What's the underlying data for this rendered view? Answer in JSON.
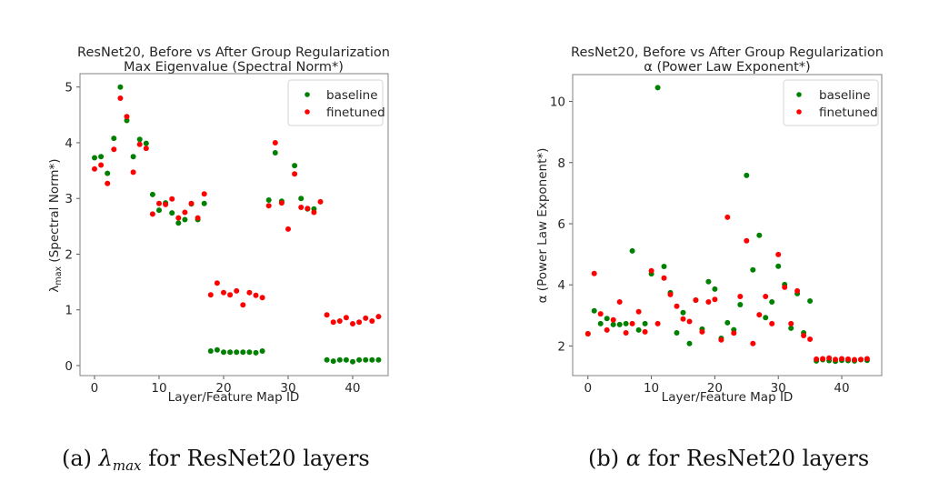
{
  "chart_data": [
    {
      "type": "scatter",
      "title": "ResNet20, Before vs After Group Regularization",
      "subtitle": "Max Eigenvalue (Spectral Norm*)",
      "xlabel": "Layer/Feature Map ID",
      "ylabel": "λmax (Spectral Norm*)",
      "ylabel_symbol": "λ",
      "ylabel_sub": "max",
      "ylabel_rest": " (Spectral Norm*)",
      "xlim": [
        -2.25,
        45.5
      ],
      "ylim": [
        -0.18,
        5.24
      ],
      "xticks": [
        0,
        10,
        20,
        30,
        40
      ],
      "yticks": [
        0,
        1,
        2,
        3,
        4,
        5
      ],
      "grid": false,
      "legend_position": "top-right",
      "x": [
        0,
        1,
        2,
        3,
        4,
        5,
        6,
        7,
        8,
        9,
        10,
        11,
        12,
        13,
        14,
        15,
        16,
        17,
        18,
        19,
        20,
        21,
        22,
        23,
        24,
        25,
        26,
        27,
        28,
        29,
        30,
        31,
        32,
        33,
        34,
        35,
        36,
        37,
        38,
        39,
        40,
        41,
        42,
        43,
        44
      ],
      "series": [
        {
          "name": "baseline",
          "color": "#008000",
          "values": [
            3.73,
            3.75,
            3.45,
            4.08,
            5.0,
            4.4,
            3.75,
            4.06,
            3.99,
            3.07,
            2.79,
            2.92,
            2.74,
            2.56,
            2.62,
            2.9,
            2.62,
            2.91,
            0.26,
            0.28,
            0.24,
            0.24,
            0.24,
            0.24,
            0.24,
            0.23,
            0.26,
            2.97,
            3.82,
            2.95,
            null,
            3.59,
            3.0,
            2.81,
            2.81,
            null,
            0.1,
            0.08,
            0.1,
            0.1,
            0.07,
            0.1,
            0.1,
            0.1,
            0.1
          ]
        },
        {
          "name": "finetuned",
          "color": "#ff0000",
          "values": [
            3.53,
            3.6,
            3.27,
            3.88,
            4.8,
            4.47,
            3.47,
            3.97,
            3.9,
            2.72,
            2.91,
            2.89,
            2.99,
            2.65,
            2.75,
            2.91,
            2.65,
            3.08,
            1.27,
            1.48,
            1.31,
            1.27,
            1.34,
            1.09,
            1.31,
            1.26,
            1.22,
            2.87,
            4.0,
            2.92,
            2.45,
            3.44,
            2.84,
            2.82,
            2.75,
            2.94,
            0.91,
            0.78,
            0.8,
            0.86,
            0.75,
            0.78,
            0.85,
            0.8,
            0.88
          ]
        }
      ],
      "caption_prefix": "(a) ",
      "caption_symbol": "λ",
      "caption_sub": "max",
      "caption_rest": " for ResNet20 layers"
    },
    {
      "type": "scatter",
      "title": "ResNet20, Before vs After Group Regularization",
      "subtitle": "α (Power Law Exponent*)",
      "xlabel": "Layer/Feature Map ID",
      "ylabel": "α (Power Law Exponent*)",
      "xlim": [
        -2.4,
        46.3
      ],
      "ylim": [
        1.03,
        10.88
      ],
      "xticks": [
        0,
        10,
        20,
        30,
        40
      ],
      "yticks": [
        2,
        4,
        6,
        8,
        10
      ],
      "grid": false,
      "legend_position": "top-right",
      "x": [
        0,
        1,
        2,
        3,
        4,
        5,
        6,
        7,
        8,
        9,
        10,
        11,
        12,
        13,
        14,
        15,
        16,
        17,
        18,
        19,
        20,
        21,
        22,
        23,
        24,
        25,
        26,
        27,
        28,
        29,
        30,
        31,
        32,
        33,
        34,
        35,
        36,
        37,
        38,
        39,
        40,
        41,
        42,
        43,
        44
      ],
      "series": [
        {
          "name": "baseline",
          "color": "#008000",
          "values": [
            2.4,
            3.15,
            2.73,
            2.9,
            2.7,
            2.7,
            2.73,
            5.11,
            2.52,
            2.73,
            4.36,
            10.45,
            4.6,
            3.74,
            2.43,
            3.09,
            2.08,
            3.5,
            2.55,
            4.1,
            3.86,
            2.25,
            2.76,
            2.53,
            3.35,
            7.58,
            4.49,
            5.62,
            2.93,
            3.44,
            4.61,
            4.01,
            2.58,
            3.71,
            2.43,
            3.47,
            1.51,
            1.55,
            1.52,
            1.5,
            1.53,
            1.52,
            1.51,
            1.55,
            1.53
          ]
        },
        {
          "name": "finetuned",
          "color": "#ff0000",
          "values": [
            2.4,
            4.37,
            3.05,
            2.52,
            2.85,
            3.44,
            2.43,
            2.73,
            3.12,
            2.46,
            4.46,
            2.73,
            4.22,
            3.68,
            3.3,
            2.88,
            2.8,
            3.5,
            2.46,
            3.44,
            3.52,
            2.2,
            6.21,
            2.42,
            3.62,
            5.44,
            2.08,
            3.02,
            3.62,
            2.73,
            4.99,
            3.92,
            2.73,
            3.8,
            2.34,
            2.22,
            1.57,
            1.58,
            1.6,
            1.56,
            1.58,
            1.57,
            1.55,
            1.56,
            1.58
          ]
        }
      ],
      "caption_prefix": "(b) ",
      "caption_symbol": "α",
      "caption_rest": " for ResNet20 layers"
    }
  ]
}
